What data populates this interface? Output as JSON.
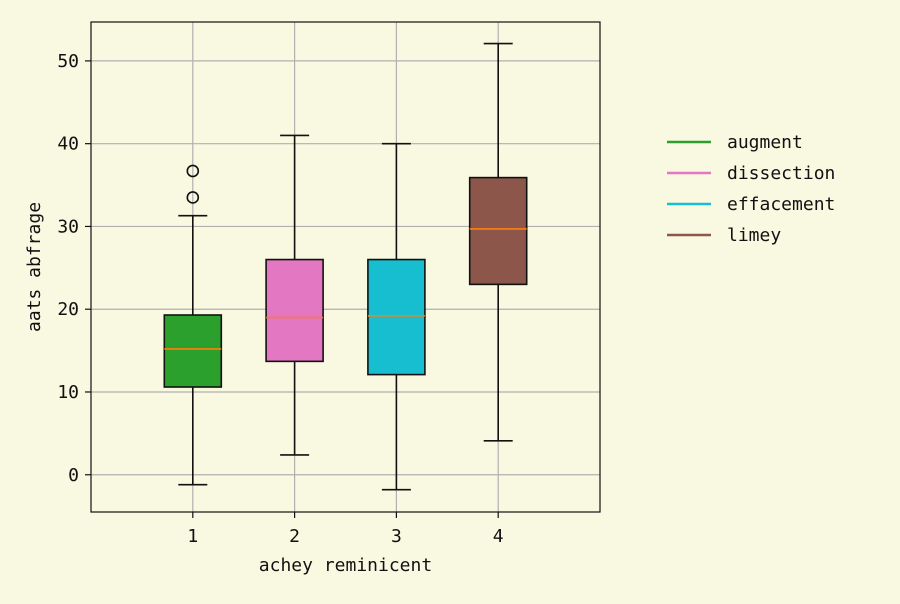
{
  "chart_data": {
    "type": "box",
    "title": "",
    "xlabel": "achey reminicent",
    "ylabel": "aats abfrage",
    "categories": [
      "1",
      "2",
      "3",
      "4"
    ],
    "ylim": [
      -4.5,
      54.7
    ],
    "yticks": [
      0,
      10,
      20,
      30,
      40,
      50
    ],
    "grid": true,
    "legend_position": "right",
    "series": [
      {
        "name": "augment",
        "color": "#2ca02c",
        "whisker_low": -1.2,
        "q1": 10.6,
        "median": 15.2,
        "q3": 19.3,
        "whisker_high": 31.3,
        "outliers": [
          33.5,
          36.7
        ]
      },
      {
        "name": "dissection",
        "color": "#e377c2",
        "whisker_low": 2.4,
        "q1": 13.7,
        "median": 19.0,
        "q3": 26.0,
        "whisker_high": 41.0,
        "outliers": []
      },
      {
        "name": "effacement",
        "color": "#17becf",
        "whisker_low": -1.8,
        "q1": 12.1,
        "median": 19.2,
        "q3": 26.0,
        "whisker_high": 40.0,
        "outliers": []
      },
      {
        "name": "limey",
        "color": "#8c564b",
        "whisker_low": 4.1,
        "q1": 23.0,
        "median": 29.7,
        "q3": 35.9,
        "whisker_high": 52.1,
        "outliers": []
      }
    ],
    "median_color": "#ff7f0e"
  }
}
